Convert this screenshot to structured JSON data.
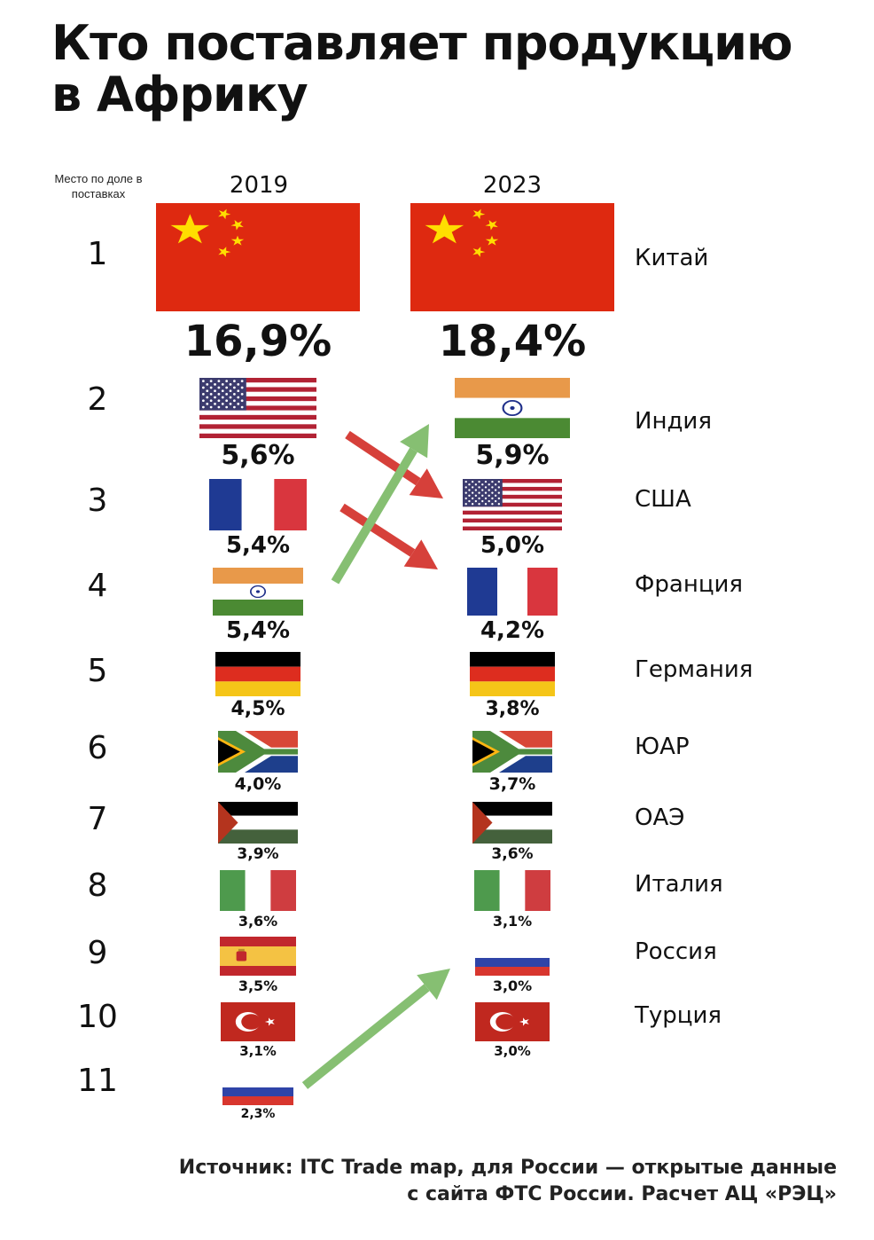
{
  "title_line1": "Кто поставляет продукцию",
  "title_line2": "в Африку",
  "rank_header": "Место по доле в поставках",
  "source": "Источник: ITC Trade map, для России — открытые данные с сайта ФТС России. Расчет АЦ «РЭЦ»",
  "chart_data": {
    "type": "table",
    "title": "Кто поставляет продукцию в Африку",
    "columns": [
      "2019",
      "2023"
    ],
    "ranks": [
      "1",
      "2",
      "3",
      "4",
      "5",
      "6",
      "7",
      "8",
      "9",
      "10",
      "11"
    ],
    "countries_2023": [
      "Китай",
      "Индия",
      "США",
      "Франция",
      "Германия",
      "ЮАР",
      "ОАЭ",
      "Италия",
      "Россия",
      "Турция"
    ],
    "series": [
      {
        "name": "2019",
        "flags": [
          "china-flag",
          "usa-flag",
          "france-flag",
          "india-flag",
          "germany-flag",
          "south-africa-flag",
          "uae-flag",
          "italy-flag",
          "spain-flag",
          "turkey-flag",
          "russia-flag"
        ],
        "shares": [
          "16,9%",
          "5,6%",
          "5,4%",
          "5,4%",
          "4,5%",
          "4,0%",
          "3,9%",
          "3,6%",
          "3,5%",
          "3,1%",
          "2,3%"
        ]
      },
      {
        "name": "2023",
        "flags": [
          "china-flag",
          "india-flag",
          "usa-flag",
          "france-flag",
          "germany-flag",
          "south-africa-flag",
          "uae-flag",
          "italy-flag",
          "russia-flag",
          "turkey-flag"
        ],
        "shares": [
          "18,4%",
          "5,9%",
          "5,0%",
          "4,2%",
          "3,8%",
          "3,7%",
          "3,6%",
          "3,1%",
          "3,0%",
          "3,0%"
        ]
      }
    ],
    "arrows": [
      {
        "from_rank_2019": 2,
        "to_rank_2023": 3,
        "direction": "down",
        "color": "#d6403a"
      },
      {
        "from_rank_2019": 3,
        "to_rank_2023": 4,
        "direction": "down",
        "color": "#d6403a"
      },
      {
        "from_rank_2019": 4,
        "to_rank_2023": 2,
        "direction": "up",
        "color": "#86bf72"
      },
      {
        "from_rank_2019": 11,
        "to_rank_2023": 9,
        "direction": "up",
        "color": "#86bf72"
      }
    ]
  }
}
